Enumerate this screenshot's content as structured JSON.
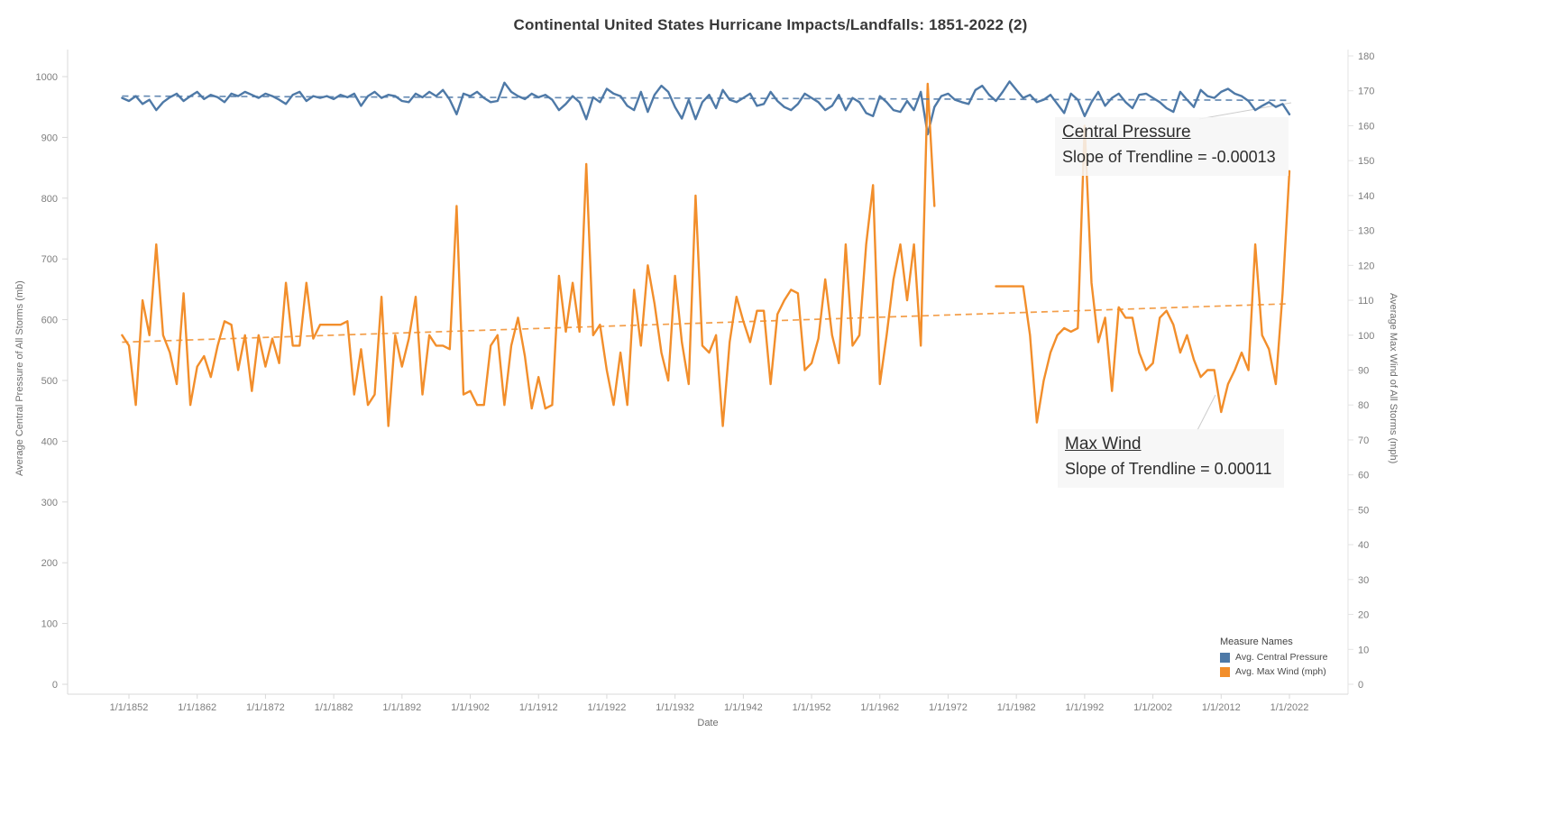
{
  "title": "Continental United States Hurricane Impacts/Landfalls: 1851-2022 (2)",
  "chart_data": {
    "type": "line",
    "x_start": 1851,
    "x_step": 1,
    "x_end": 2022,
    "axes": {
      "left": {
        "label": "Average Central Pressure of All Storms (mb)",
        "min": 0,
        "max": 1000,
        "tick_step": 100
      },
      "right": {
        "label": "Average Max Wind of All Storms (mph)",
        "min": 0,
        "max": 180,
        "tick_step": 10
      },
      "x": {
        "label": "Date",
        "tick_labels": [
          "1/1/1852",
          "1/1/1862",
          "1/1/1872",
          "1/1/1882",
          "1/1/1892",
          "1/1/1902",
          "1/1/1912",
          "1/1/1922",
          "1/1/1932",
          "1/1/1942",
          "1/1/1952",
          "1/1/1962",
          "1/1/1972",
          "1/1/1982",
          "1/1/1992",
          "1/1/2002",
          "1/1/2012",
          "1/1/2022"
        ],
        "tick_year_start": 1852,
        "tick_year_step": 10
      }
    },
    "series": [
      {
        "name": "Avg. Central Pressure",
        "axis": "left",
        "color": "#4e79a7",
        "values": [
          965,
          960,
          968,
          955,
          962,
          945,
          958,
          966,
          972,
          960,
          968,
          975,
          963,
          970,
          966,
          958,
          972,
          968,
          975,
          970,
          965,
          972,
          968,
          962,
          955,
          970,
          975,
          960,
          968,
          965,
          968,
          963,
          970,
          966,
          972,
          952,
          968,
          975,
          965,
          970,
          968,
          960,
          958,
          972,
          966,
          975,
          968,
          978,
          962,
          938,
          972,
          968,
          975,
          965,
          958,
          960,
          990,
          975,
          968,
          963,
          972,
          966,
          970,
          962,
          945,
          955,
          968,
          958,
          930,
          966,
          958,
          980,
          972,
          968,
          952,
          945,
          975,
          942,
          970,
          985,
          975,
          950,
          931,
          962,
          930,
          958,
          970,
          948,
          978,
          962,
          958,
          965,
          972,
          952,
          955,
          975,
          960,
          950,
          945,
          955,
          972,
          965,
          958,
          945,
          952,
          970,
          945,
          965,
          958,
          940,
          935,
          968,
          958,
          945,
          942,
          960,
          945,
          975,
          905,
          950,
          968,
          972,
          962,
          958,
          955,
          978,
          985,
          970,
          960,
          975,
          992,
          978,
          965,
          970,
          958,
          962,
          970,
          955,
          940,
          972,
          962,
          935,
          958,
          975,
          952,
          965,
          972,
          958,
          948,
          970,
          972,
          965,
          958,
          948,
          942,
          975,
          962,
          950,
          978,
          968,
          965,
          975,
          980,
          972,
          968,
          960,
          945,
          952,
          958,
          950,
          955,
          938
        ]
      },
      {
        "name": "Avg. Max Wind (mph)",
        "axis": "right",
        "color": "#f28e2b",
        "values": [
          100,
          97,
          80,
          110,
          100,
          126,
          100,
          95,
          86,
          112,
          80,
          91,
          94,
          88,
          97,
          104,
          103,
          90,
          100,
          84,
          100,
          91,
          99,
          92,
          115,
          97,
          97,
          115,
          99,
          103,
          103,
          103,
          103,
          104,
          83,
          96,
          80,
          83,
          111,
          74,
          100,
          91,
          99,
          111,
          83,
          100,
          97,
          97,
          96,
          137,
          83,
          84,
          80,
          80,
          97,
          100,
          80,
          97,
          105,
          94,
          79,
          88,
          79,
          80,
          117,
          101,
          115,
          101,
          149,
          100,
          103,
          90,
          80,
          95,
          80,
          113,
          97,
          120,
          109,
          95,
          87,
          117,
          98,
          86,
          140,
          97,
          95,
          100,
          74,
          98,
          111,
          104,
          98,
          107,
          107,
          86,
          106,
          110,
          113,
          112,
          90,
          92,
          99,
          116,
          100,
          92,
          126,
          97,
          100,
          126,
          143,
          86,
          100,
          116,
          126,
          110,
          126,
          97,
          172,
          137,
          null,
          null,
          null,
          null,
          null,
          null,
          null,
          null,
          114,
          114,
          114,
          114,
          114,
          100,
          75,
          87,
          95,
          100,
          102,
          101,
          102,
          160,
          115,
          98,
          105,
          84,
          108,
          105,
          105,
          95,
          90,
          92,
          105,
          107,
          103,
          95,
          100,
          93,
          88,
          90,
          90,
          78,
          86,
          90,
          95,
          90,
          126,
          100,
          96,
          86,
          112,
          147
        ]
      }
    ],
    "trendlines": [
      {
        "series": "Avg. Central Pressure",
        "axis": "left",
        "start": 968,
        "end": 961,
        "slope": "-0.00013"
      },
      {
        "series": "Avg. Max Wind (mph)",
        "axis": "right",
        "start": 98,
        "end": 109,
        "slope": "0.00011"
      }
    ],
    "annotations": [
      {
        "title": "Central Pressure",
        "text": "Slope of Trendline = -0.00013"
      },
      {
        "title": "Max Wind",
        "text": "Slope of Trendline = 0.00011"
      }
    ],
    "legend": {
      "title": "Measure Names",
      "entries": [
        {
          "label": "Avg. Central Pressure",
          "color": "#4e79a7"
        },
        {
          "label": "Avg. Max Wind (mph)",
          "color": "#f28e2b"
        }
      ]
    }
  }
}
